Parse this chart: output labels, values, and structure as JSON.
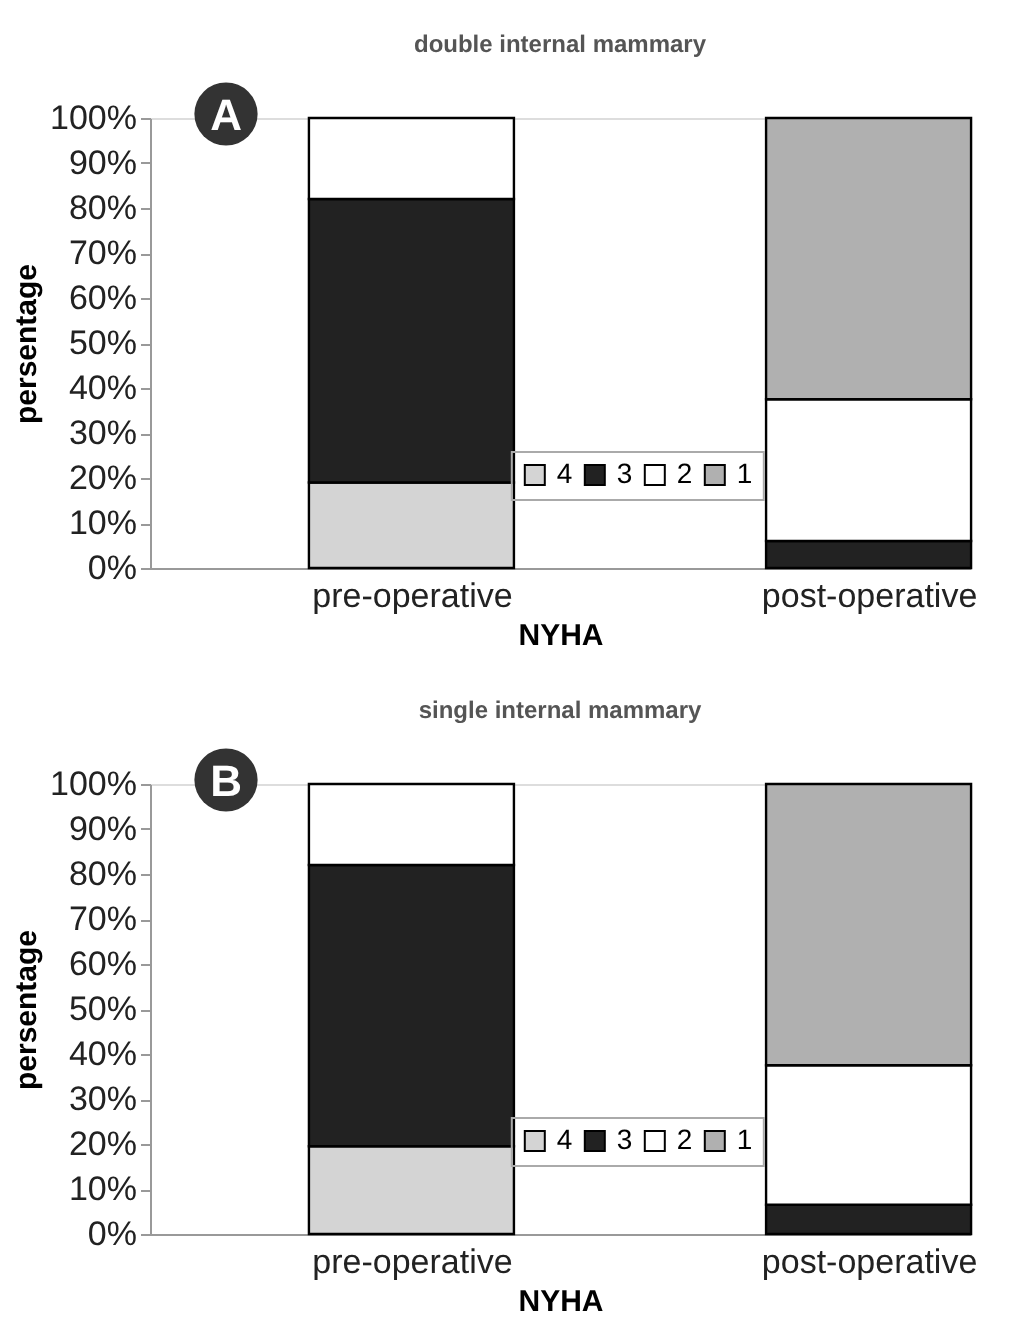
{
  "chart_data": [
    {
      "type": "bar",
      "stacked": true,
      "title": "double internal mammary",
      "xlabel": "NYHA",
      "ylabel": "persentage",
      "categories": [
        "pre-operative",
        "post-operative"
      ],
      "series": [
        {
          "name": "4",
          "color": "#d4d4d4",
          "values": [
            19,
            null
          ]
        },
        {
          "name": "3",
          "color": "#222222",
          "values": [
            63,
            6
          ]
        },
        {
          "name": "2",
          "color": "#ffffff",
          "values": [
            18,
            31.5
          ]
        },
        {
          "name": "1",
          "color": "#b0b0b0",
          "values": [
            null,
            62.5
          ]
        }
      ],
      "ylim": [
        0,
        100
      ],
      "yticks": [
        {
          "value": 0,
          "label": "0%"
        },
        {
          "value": 10,
          "label": "10%"
        },
        {
          "value": 20,
          "label": "20%"
        },
        {
          "value": 30,
          "label": "30%"
        },
        {
          "value": 40,
          "label": "40%"
        },
        {
          "value": 50,
          "label": "50%"
        },
        {
          "value": 60,
          "label": "60%"
        },
        {
          "value": 70,
          "label": "70%"
        },
        {
          "value": 80,
          "label": "80%"
        },
        {
          "value": 90,
          "label": "90%"
        },
        {
          "value": 100,
          "label": "100%"
        }
      ],
      "legend": "bottom",
      "grid": false,
      "annotations": [
        "A"
      ]
    },
    {
      "type": "bar",
      "stacked": true,
      "title": "single internal mammary",
      "xlabel": "NYHA",
      "ylabel": "persentage",
      "categories": [
        "pre-operative",
        "post-operative"
      ],
      "series": [
        {
          "name": "4",
          "color": "#d4d4d4",
          "values": [
            19.5,
            null
          ]
        },
        {
          "name": "3",
          "color": "#222222",
          "values": [
            62.5,
            6.5
          ]
        },
        {
          "name": "2",
          "color": "#ffffff",
          "values": [
            18,
            31
          ]
        },
        {
          "name": "1",
          "color": "#b0b0b0",
          "values": [
            null,
            62.5
          ]
        }
      ],
      "ylim": [
        0,
        100
      ],
      "yticks": [
        {
          "value": 0,
          "label": "0%"
        },
        {
          "value": 10,
          "label": "10%"
        },
        {
          "value": 20,
          "label": "20%"
        },
        {
          "value": 30,
          "label": "30%"
        },
        {
          "value": 40,
          "label": "40%"
        },
        {
          "value": 50,
          "label": "50%"
        },
        {
          "value": 60,
          "label": "60%"
        },
        {
          "value": 70,
          "label": "70%"
        },
        {
          "value": 80,
          "label": "80%"
        },
        {
          "value": 90,
          "label": "90%"
        },
        {
          "value": 100,
          "label": "100%"
        }
      ],
      "legend": "bottom",
      "grid": false,
      "annotations": [
        "B"
      ]
    }
  ]
}
